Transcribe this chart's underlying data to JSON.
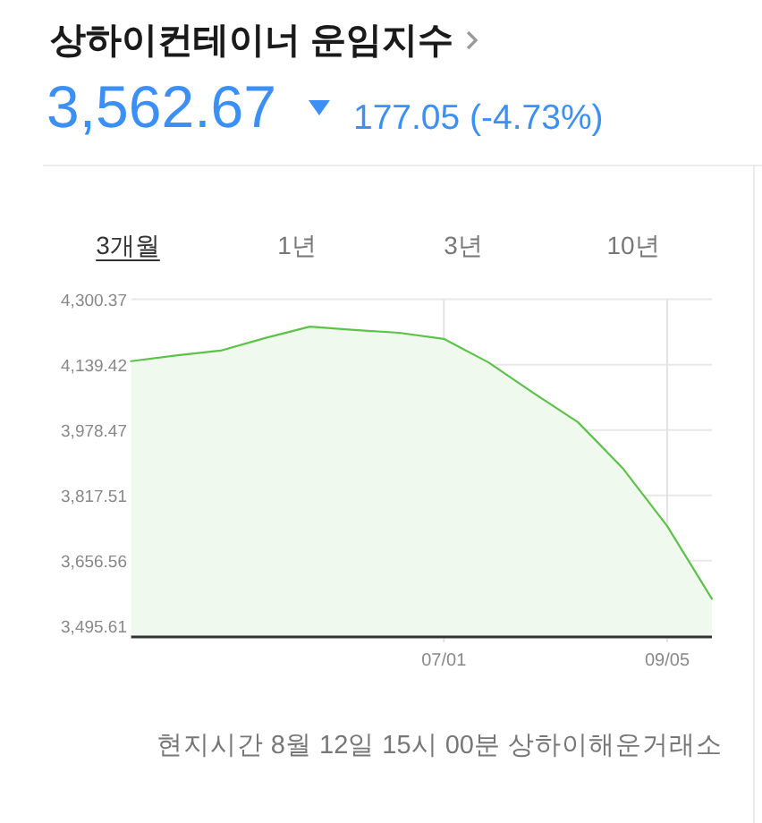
{
  "chart_data": {
    "type": "area",
    "title": "상하이컨테이너 운임지수",
    "subtitle": "3,562.67",
    "annotations": [
      "177.05 (-4.73%)",
      "3개월",
      "1년",
      "3년",
      "10년",
      "현지시간 8월 12일 15시 00분 상하이해운거래소"
    ],
    "categories": [
      null,
      null,
      null,
      null,
      null,
      null,
      null,
      "07/01",
      null,
      null,
      null,
      null,
      "09/05",
      null
    ],
    "values": [
      4148,
      4162,
      4174,
      4205,
      4233,
      4225,
      4218,
      4203,
      4145,
      4070,
      3998,
      3885,
      3742,
      3563
    ],
    "color": "#5cc24a",
    "ylim": [
      3469,
      4300.37
    ],
    "yticks": [
      {
        "value": 3495.61,
        "label": "3,495.61"
      },
      {
        "value": 3656.56,
        "label": "3,656.56"
      },
      {
        "value": 3817.51,
        "label": "3,817.51"
      },
      {
        "value": 3978.47,
        "label": "3,978.47"
      },
      {
        "value": 4139.42,
        "label": "4,139.42"
      },
      {
        "value": 4300.37,
        "label": "4,300.37"
      }
    ],
    "grid": true
  }
}
